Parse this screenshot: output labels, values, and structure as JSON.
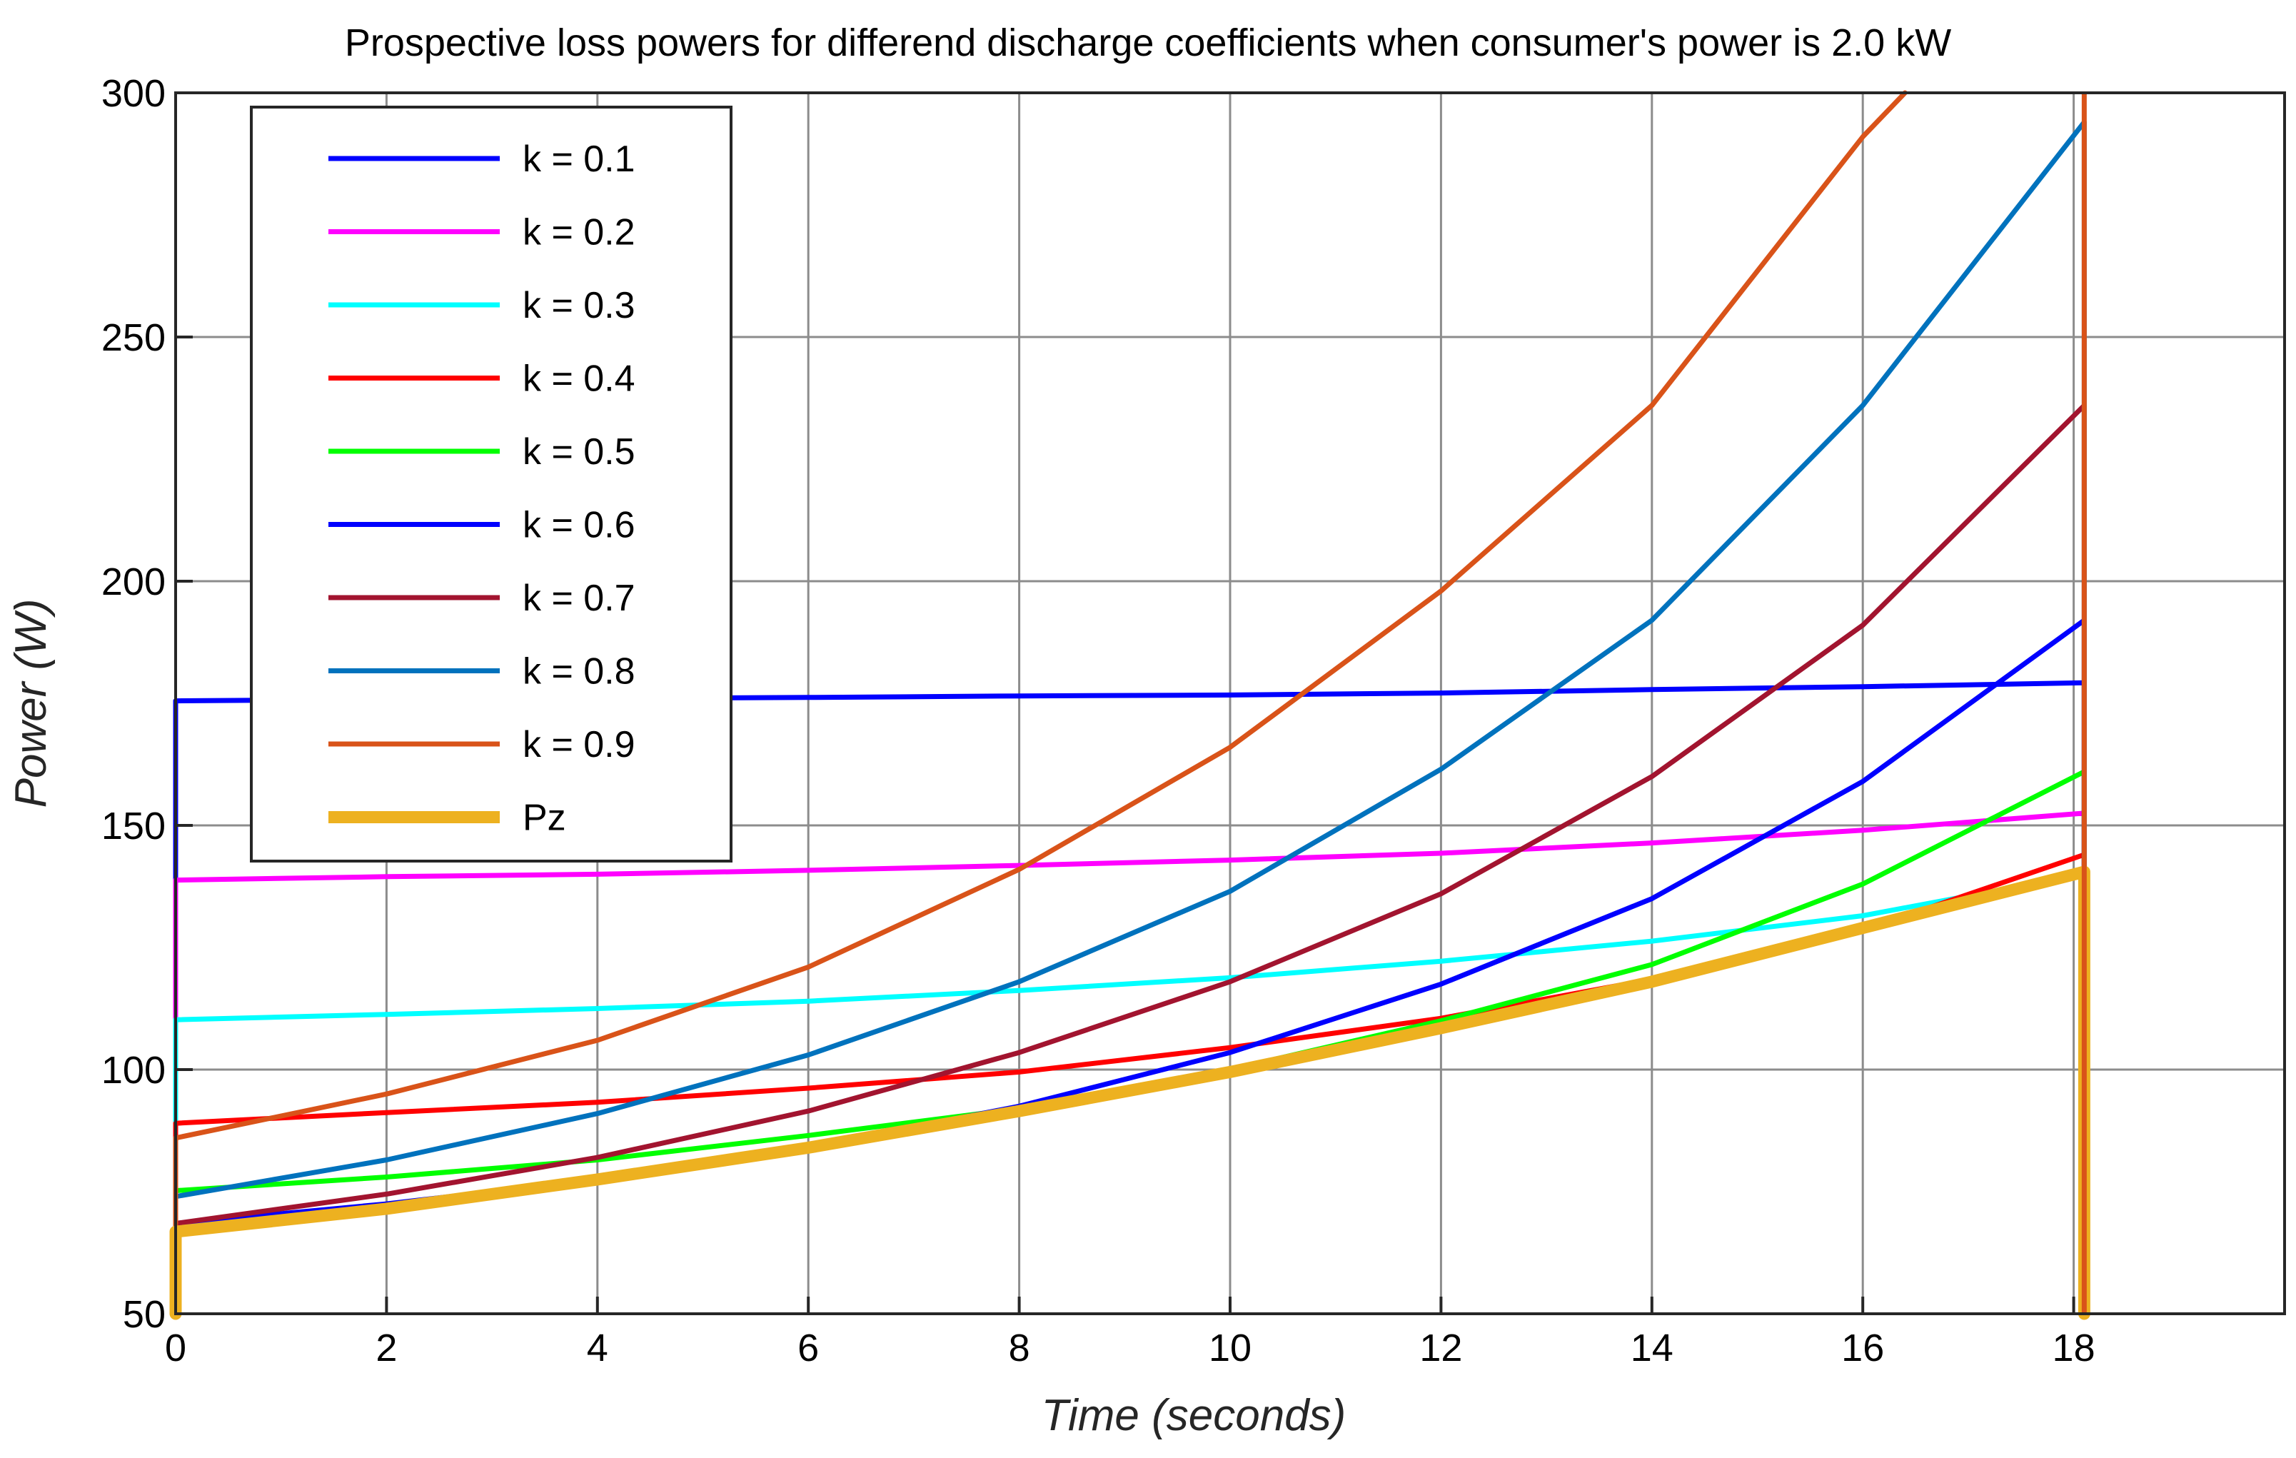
{
  "chart_data": {
    "type": "line",
    "title": "Prospective loss powers for differend discharge coefficients when consumer's power is 2.0 kW",
    "xlabel": "Time (seconds)",
    "ylabel": "Power (W)",
    "xlim": [
      0,
      20
    ],
    "ylim": [
      50,
      300
    ],
    "xticks": [
      0,
      2,
      4,
      6,
      8,
      10,
      12,
      14,
      16,
      18
    ],
    "yticks": [
      50,
      100,
      150,
      200,
      250,
      300
    ],
    "grid": true,
    "legend_position": "top-left",
    "end_time": 18.1,
    "series": [
      {
        "name": "k = 0.1",
        "color": "#0000ff",
        "start": 50,
        "x": [
          0,
          2,
          4,
          6,
          8,
          10,
          12,
          14,
          16,
          18.1
        ],
        "y": [
          175.5,
          175.8,
          176,
          176.2,
          176.5,
          176.7,
          177.1,
          177.8,
          178.4,
          179.2
        ]
      },
      {
        "name": "k = 0.2",
        "color": "#ff00ff",
        "start": 50,
        "x": [
          0,
          2,
          4,
          6,
          8,
          10,
          12,
          14,
          16,
          18.1
        ],
        "y": [
          138.8,
          139.5,
          140,
          140.8,
          141.8,
          142.9,
          144.3,
          146.4,
          149,
          152.5
        ]
      },
      {
        "name": "k = 0.3",
        "color": "#00ffff",
        "start": 50,
        "x": [
          0,
          2,
          4,
          6,
          8,
          10,
          12,
          14,
          16,
          18.1
        ],
        "y": [
          110.2,
          111.3,
          112.5,
          114,
          116.2,
          118.8,
          122.2,
          126.3,
          131.5,
          140
        ]
      },
      {
        "name": "k = 0.4",
        "color": "#ff0000",
        "start": 50,
        "x": [
          0,
          2,
          4,
          6,
          8,
          10,
          12,
          14,
          16,
          18.1
        ],
        "y": [
          89,
          91.2,
          93.3,
          96.2,
          99.5,
          104.5,
          110.5,
          118.5,
          128.5,
          144
        ]
      },
      {
        "name": "k = 0.5",
        "color": "#00ff00",
        "start": 50,
        "x": [
          0,
          2,
          4,
          6,
          8,
          10,
          12,
          14,
          16,
          18.1
        ],
        "y": [
          75.2,
          78,
          81.5,
          86.5,
          92,
          100,
          110,
          121.5,
          138,
          161
        ]
      },
      {
        "name": "k = 0.6",
        "color": "#0000ff",
        "start": 50,
        "x": [
          0,
          2,
          4,
          6,
          8,
          10,
          12,
          14,
          16,
          18.1
        ],
        "y": [
          68.5,
          72.5,
          77.5,
          84,
          92.5,
          103.5,
          117.5,
          135,
          159,
          192
        ]
      },
      {
        "name": "k = 0.7",
        "color": "#a2142f",
        "start": 50,
        "x": [
          0,
          2,
          4,
          6,
          8,
          10,
          12,
          14,
          16,
          18.1
        ],
        "y": [
          68.5,
          74.5,
          82,
          91.5,
          103.5,
          118,
          136,
          160,
          191,
          236
        ]
      },
      {
        "name": "k = 0.8",
        "color": "#0072bd",
        "start": 50,
        "x": [
          0,
          2,
          4,
          6,
          8,
          10,
          12,
          14,
          16,
          18.1
        ],
        "y": [
          74,
          81.5,
          91,
          103,
          118,
          136.5,
          161.5,
          192,
          236,
          294
        ]
      },
      {
        "name": "k = 0.9",
        "color": "#d95319",
        "start": 50,
        "x": [
          0,
          2,
          4,
          6,
          8,
          10,
          12,
          14,
          16,
          16.4
        ],
        "y": [
          86,
          95,
          106,
          121,
          141,
          166,
          198,
          236,
          291,
          300
        ]
      },
      {
        "name": "Pz",
        "color": "#edb120",
        "start": 50,
        "x": [
          0,
          2,
          4,
          6,
          8,
          10,
          12,
          14,
          16,
          18.1
        ],
        "y": [
          66.8,
          71.5,
          77.5,
          84,
          91.5,
          99.5,
          108.5,
          118,
          129,
          140.5
        ]
      }
    ]
  }
}
